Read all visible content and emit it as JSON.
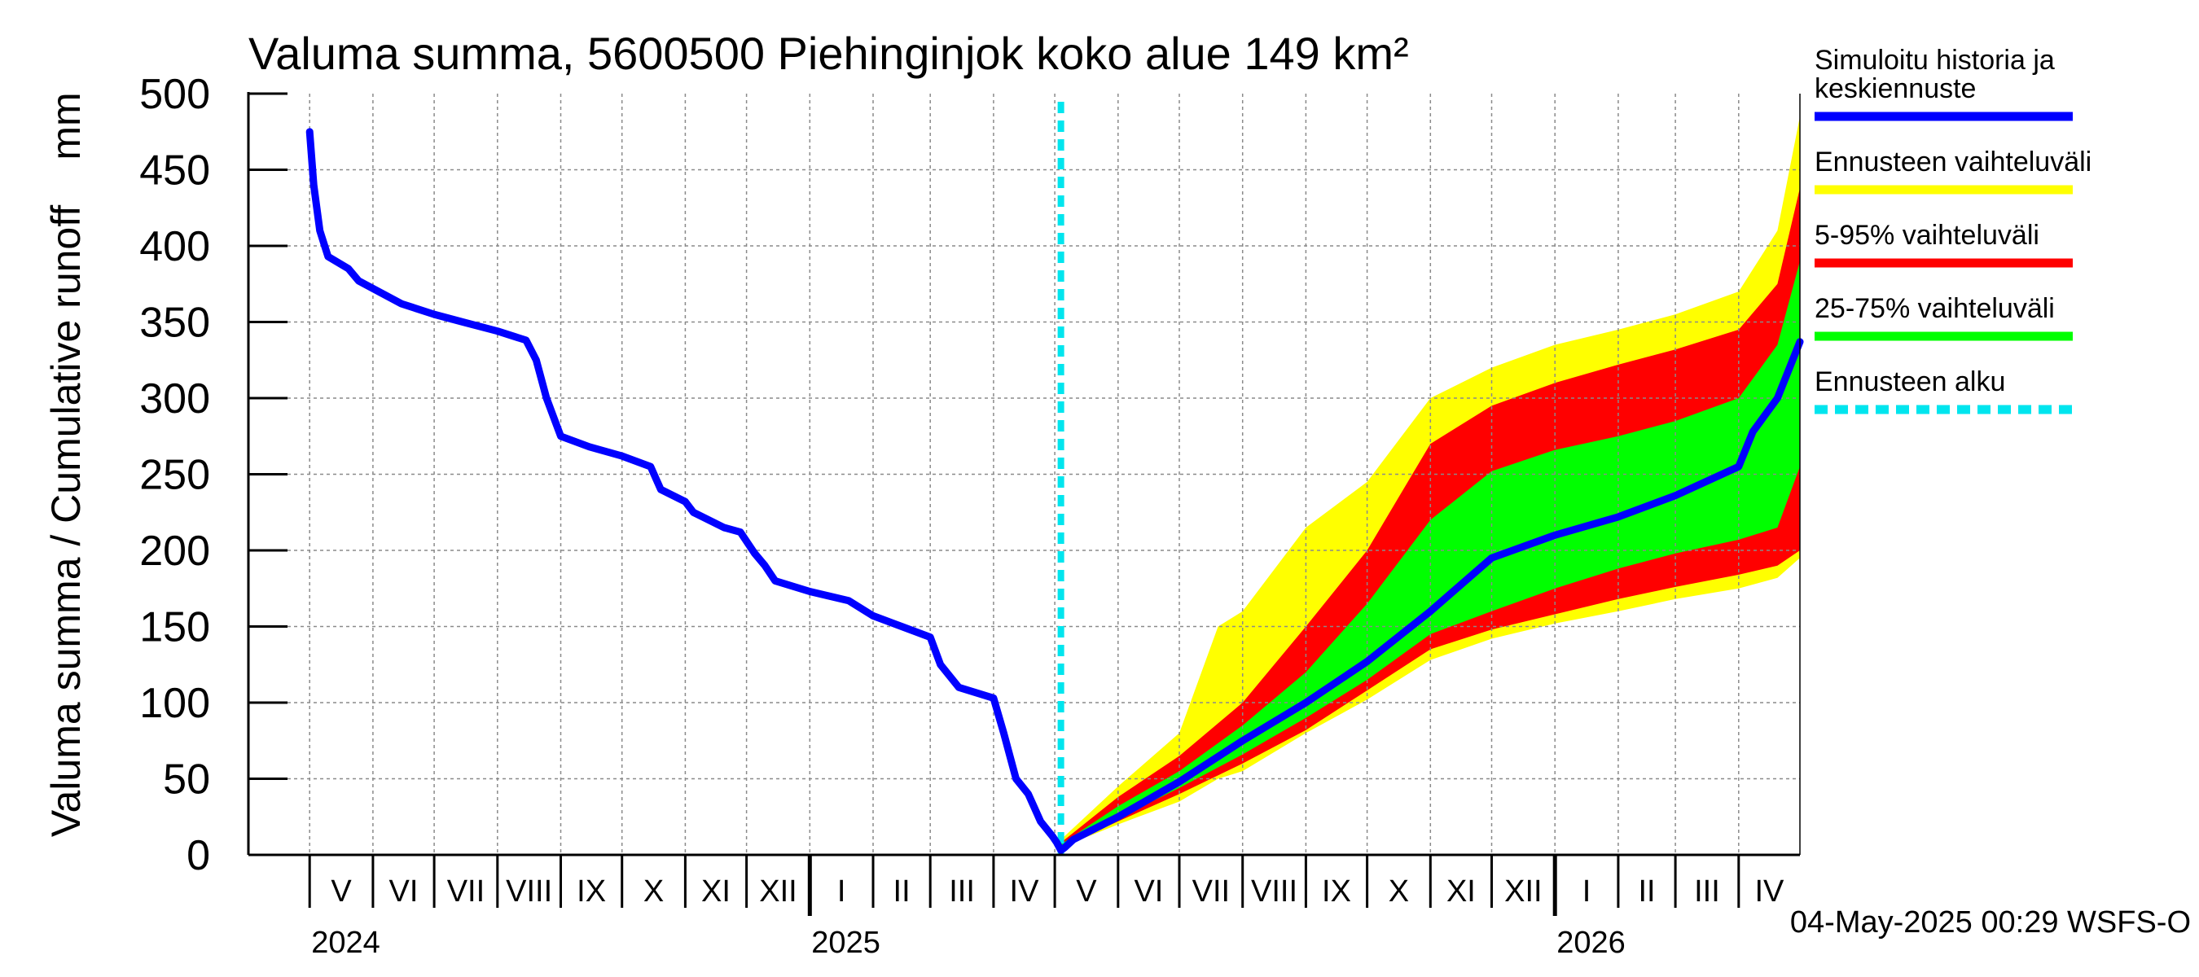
{
  "chart_data": {
    "type": "area",
    "title": "Valuma summa, 5600500 Piehinginjok koko alue 149 km²",
    "ylabel_left": "Valuma summa / Cumulative runoff",
    "ylabel_unit": "mm",
    "ylim": [
      0,
      500
    ],
    "yticks": [
      0,
      50,
      100,
      150,
      200,
      250,
      300,
      350,
      400,
      450,
      500
    ],
    "x_start": "2024-04-01",
    "x_end": "2026-05-01",
    "grid": true,
    "months": [
      {
        "label": "V",
        "start": "2024-05-01"
      },
      {
        "label": "VI",
        "start": "2024-06-01"
      },
      {
        "label": "VII",
        "start": "2024-07-01"
      },
      {
        "label": "VIII",
        "start": "2024-08-01"
      },
      {
        "label": "IX",
        "start": "2024-09-01"
      },
      {
        "label": "X",
        "start": "2024-10-01"
      },
      {
        "label": "XI",
        "start": "2024-11-01"
      },
      {
        "label": "XII",
        "start": "2024-12-01"
      },
      {
        "label": "I",
        "start": "2025-01-01"
      },
      {
        "label": "II",
        "start": "2025-02-01"
      },
      {
        "label": "III",
        "start": "2025-03-01"
      },
      {
        "label": "IV",
        "start": "2025-04-01"
      },
      {
        "label": "V",
        "start": "2025-05-01"
      },
      {
        "label": "VI",
        "start": "2025-06-01"
      },
      {
        "label": "VII",
        "start": "2025-07-01"
      },
      {
        "label": "VIII",
        "start": "2025-08-01"
      },
      {
        "label": "IX",
        "start": "2025-09-01"
      },
      {
        "label": "X",
        "start": "2025-10-01"
      },
      {
        "label": "XI",
        "start": "2025-11-01"
      },
      {
        "label": "XII",
        "start": "2025-12-01"
      },
      {
        "label": "I",
        "start": "2026-01-01"
      },
      {
        "label": "II",
        "start": "2026-02-01"
      },
      {
        "label": "III",
        "start": "2026-03-01"
      },
      {
        "label": "IV",
        "start": "2026-04-01"
      }
    ],
    "years": [
      {
        "label": "2024",
        "date": "2024-05-01"
      },
      {
        "label": "2025",
        "date": "2025-01-01"
      },
      {
        "label": "2026",
        "date": "2026-01-01"
      }
    ],
    "forecast_start": "2025-05-04",
    "series": [
      {
        "name": "Simuloitu historia ja keskiennuste",
        "color": "#0000ff",
        "points": [
          [
            "2024-05-01",
            475
          ],
          [
            "2024-05-03",
            440
          ],
          [
            "2024-05-06",
            410
          ],
          [
            "2024-05-10",
            393
          ],
          [
            "2024-05-20",
            385
          ],
          [
            "2024-05-25",
            377
          ],
          [
            "2024-06-01",
            372
          ],
          [
            "2024-06-15",
            362
          ],
          [
            "2024-07-01",
            355
          ],
          [
            "2024-07-15",
            350
          ],
          [
            "2024-08-01",
            344
          ],
          [
            "2024-08-15",
            338
          ],
          [
            "2024-08-20",
            325
          ],
          [
            "2024-08-25",
            300
          ],
          [
            "2024-09-01",
            275
          ],
          [
            "2024-09-15",
            268
          ],
          [
            "2024-10-01",
            262
          ],
          [
            "2024-10-15",
            255
          ],
          [
            "2024-10-20",
            240
          ],
          [
            "2024-11-01",
            232
          ],
          [
            "2024-11-05",
            225
          ],
          [
            "2024-11-20",
            215
          ],
          [
            "2024-11-28",
            212
          ],
          [
            "2024-12-05",
            198
          ],
          [
            "2024-12-10",
            190
          ],
          [
            "2024-12-15",
            180
          ],
          [
            "2025-01-01",
            173
          ],
          [
            "2025-01-20",
            167
          ],
          [
            "2025-02-01",
            157
          ],
          [
            "2025-02-15",
            150
          ],
          [
            "2025-03-01",
            143
          ],
          [
            "2025-03-06",
            125
          ],
          [
            "2025-03-15",
            110
          ],
          [
            "2025-04-01",
            103
          ],
          [
            "2025-04-06",
            80
          ],
          [
            "2025-04-12",
            50
          ],
          [
            "2025-04-18",
            40
          ],
          [
            "2025-04-24",
            22
          ],
          [
            "2025-04-30",
            12
          ],
          [
            "2025-05-02",
            8
          ],
          [
            "2025-05-04",
            3
          ],
          [
            "2025-05-06",
            5
          ],
          [
            "2025-05-10",
            10
          ],
          [
            "2025-06-01",
            25
          ],
          [
            "2025-07-01",
            48
          ],
          [
            "2025-08-01",
            75
          ],
          [
            "2025-09-01",
            100
          ],
          [
            "2025-10-01",
            127
          ],
          [
            "2025-11-01",
            160
          ],
          [
            "2025-12-01",
            195
          ],
          [
            "2026-01-01",
            210
          ],
          [
            "2026-02-01",
            222
          ],
          [
            "2026-03-01",
            236
          ],
          [
            "2026-04-01",
            255
          ],
          [
            "2026-04-08",
            278
          ],
          [
            "2026-04-20",
            300
          ],
          [
            "2026-05-01",
            337
          ]
        ]
      },
      {
        "name": "Ennusteen vaihteluväli",
        "color": "#ffff00",
        "band": [
          [
            "2025-05-04",
            5,
            10
          ],
          [
            "2025-06-01",
            20,
            45
          ],
          [
            "2025-07-01",
            35,
            80
          ],
          [
            "2025-07-20",
            50,
            150
          ],
          [
            "2025-08-01",
            55,
            160
          ],
          [
            "2025-09-01",
            80,
            215
          ],
          [
            "2025-10-01",
            102,
            245
          ],
          [
            "2025-11-01",
            128,
            300
          ],
          [
            "2025-12-01",
            142,
            320
          ],
          [
            "2026-01-01",
            152,
            335
          ],
          [
            "2026-02-01",
            160,
            345
          ],
          [
            "2026-03-01",
            168,
            355
          ],
          [
            "2026-04-01",
            175,
            370
          ],
          [
            "2026-04-20",
            182,
            410
          ],
          [
            "2026-05-01",
            195,
            485
          ]
        ]
      },
      {
        "name": "5-95% vaihteluväli",
        "color": "#ff0000",
        "band": [
          [
            "2025-05-04",
            5,
            8
          ],
          [
            "2025-06-01",
            22,
            38
          ],
          [
            "2025-07-01",
            40,
            65
          ],
          [
            "2025-08-01",
            60,
            100
          ],
          [
            "2025-09-01",
            82,
            150
          ],
          [
            "2025-10-01",
            108,
            200
          ],
          [
            "2025-11-01",
            135,
            270
          ],
          [
            "2025-12-01",
            148,
            295
          ],
          [
            "2026-01-01",
            158,
            310
          ],
          [
            "2026-02-01",
            168,
            322
          ],
          [
            "2026-03-01",
            176,
            332
          ],
          [
            "2026-04-01",
            184,
            345
          ],
          [
            "2026-04-20",
            190,
            375
          ],
          [
            "2026-05-01",
            200,
            438
          ]
        ]
      },
      {
        "name": "25-75% vaihteluväli",
        "color": "#00ff00",
        "band": [
          [
            "2025-05-04",
            5,
            7
          ],
          [
            "2025-06-01",
            24,
            32
          ],
          [
            "2025-07-01",
            44,
            55
          ],
          [
            "2025-08-01",
            66,
            85
          ],
          [
            "2025-09-01",
            90,
            120
          ],
          [
            "2025-10-01",
            115,
            165
          ],
          [
            "2025-11-01",
            145,
            220
          ],
          [
            "2025-12-01",
            160,
            252
          ],
          [
            "2026-01-01",
            175,
            266
          ],
          [
            "2026-02-01",
            188,
            275
          ],
          [
            "2026-03-01",
            198,
            285
          ],
          [
            "2026-04-01",
            207,
            300
          ],
          [
            "2026-04-20",
            215,
            335
          ],
          [
            "2026-05-01",
            255,
            390
          ]
        ]
      }
    ],
    "legend": [
      {
        "label": "Simuloitu historia ja",
        "label2": "keskiennuste",
        "color": "#0000ff",
        "style": "solid"
      },
      {
        "label": "Ennusteen vaihteluväli",
        "color": "#ffff00",
        "style": "solid"
      },
      {
        "label": "5-95% vaihteluväli",
        "color": "#ff0000",
        "style": "solid"
      },
      {
        "label": "25-75% vaihteluväli",
        "color": "#00ff00",
        "style": "solid"
      },
      {
        "label": "Ennusteen alku",
        "color": "#00e5ee",
        "style": "dashed"
      }
    ],
    "legend_position": "right",
    "footer": "04-May-2025 00:29 WSFS-O"
  }
}
